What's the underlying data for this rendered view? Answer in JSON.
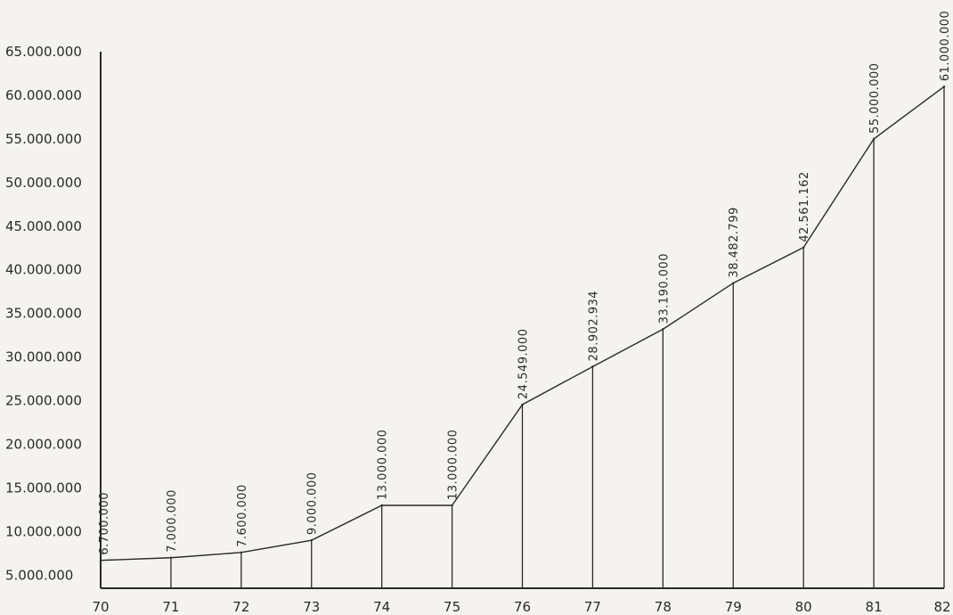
{
  "chart_data": {
    "type": "line",
    "categories": [
      "70",
      "71",
      "72",
      "73",
      "74",
      "75",
      "76",
      "77",
      "78",
      "79",
      "80",
      "81",
      "82"
    ],
    "series": [
      {
        "values": [
          6700000,
          7000000,
          7600000,
          9000000,
          13000000,
          13000000,
          24549000,
          28902934,
          33190000,
          38482799,
          42561162,
          55000000,
          61000000
        ]
      }
    ],
    "data_labels": [
      "6.700.000",
      "7.000.000",
      "7.600.000",
      "9.000.000",
      "13.000.000",
      "13.000.000",
      "24.549.000",
      "28.902.934",
      "33.190.000",
      "38.482.799",
      "42.561.162",
      "55.000.000",
      "61.000.000"
    ],
    "y_tick_labels": [
      "5.000.000",
      "10.000.000",
      "15.000.000",
      "20.000.000",
      "25.000.000",
      "30.000.000",
      "35.000.000",
      "40.000.000",
      "45.000.000",
      "50.000.000",
      "55.000.000",
      "60.000.000",
      "65.000.000"
    ],
    "y_tick_values": [
      5000000,
      10000000,
      15000000,
      20000000,
      25000000,
      30000000,
      35000000,
      40000000,
      45000000,
      50000000,
      55000000,
      60000000,
      65000000
    ],
    "ylim": [
      3500000,
      65000000
    ],
    "title": "",
    "xlabel": "",
    "ylabel": "",
    "grid": false,
    "vertical_drop_lines": true,
    "line_color": "#2a2a2a",
    "background_color": "#f4f3f1"
  }
}
